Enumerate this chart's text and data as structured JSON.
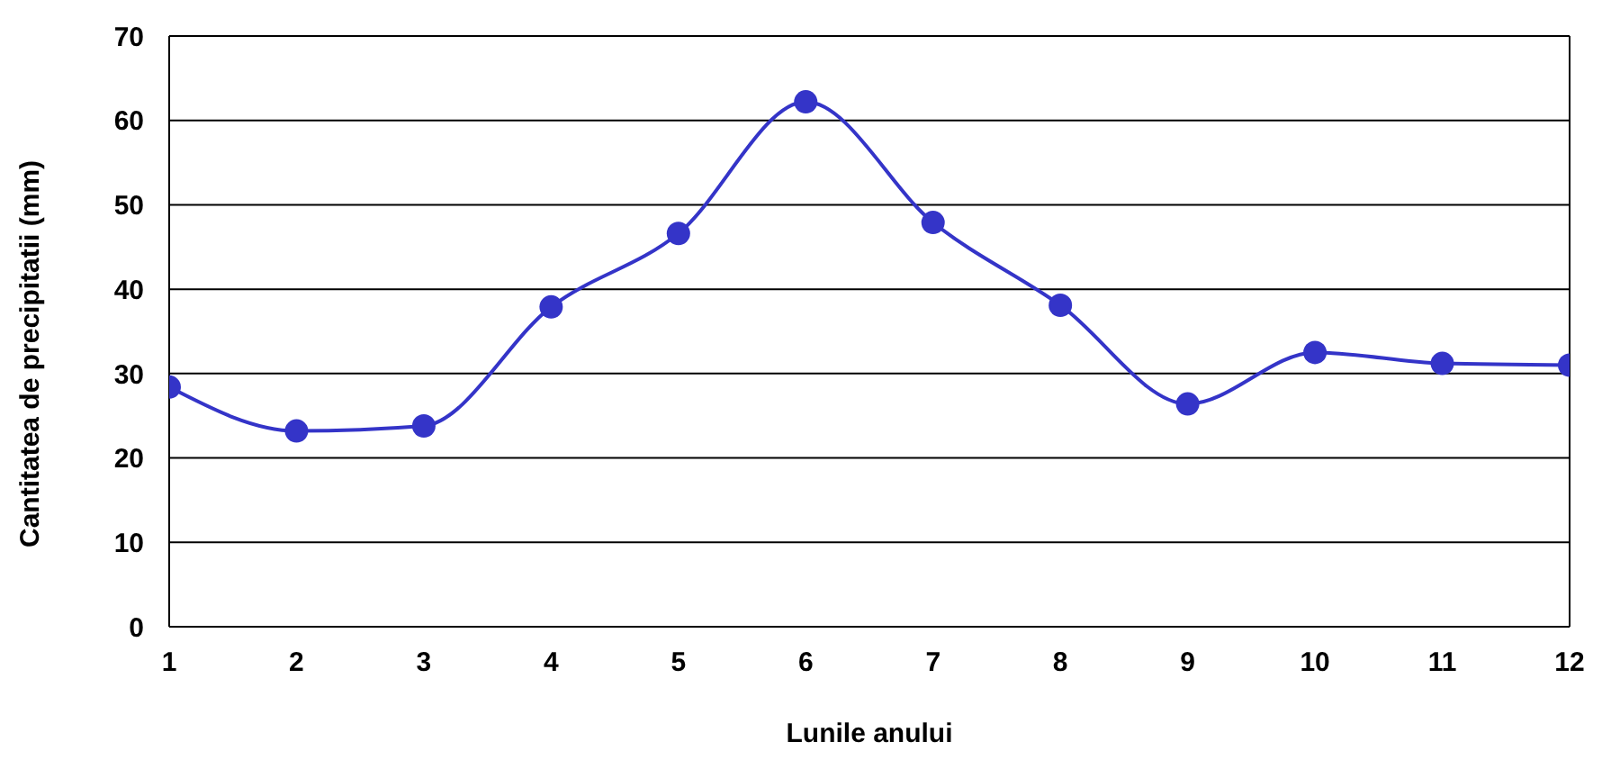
{
  "chart_data": {
    "type": "line",
    "xlabel": "Lunile anului",
    "ylabel": "Cantitatea de precipitatii (mm)",
    "x": [
      1,
      2,
      3,
      4,
      5,
      6,
      7,
      8,
      9,
      10,
      11,
      12
    ],
    "series": [
      {
        "color": "#3434c8",
        "values": [
          28.4,
          23.2,
          23.8,
          37.9,
          46.6,
          62.2,
          47.9,
          38.1,
          26.4,
          32.5,
          31.2,
          31.0
        ]
      }
    ],
    "xlim": [
      1,
      12
    ],
    "xticks": [
      1,
      2,
      3,
      4,
      5,
      6,
      7,
      8,
      9,
      10,
      11,
      12
    ],
    "ylim": [
      0,
      70
    ],
    "yticks": [
      0,
      10,
      20,
      30,
      40,
      50,
      60,
      70
    ],
    "grid": "y",
    "legend": false,
    "marker": "circle",
    "line_style": "solid"
  }
}
